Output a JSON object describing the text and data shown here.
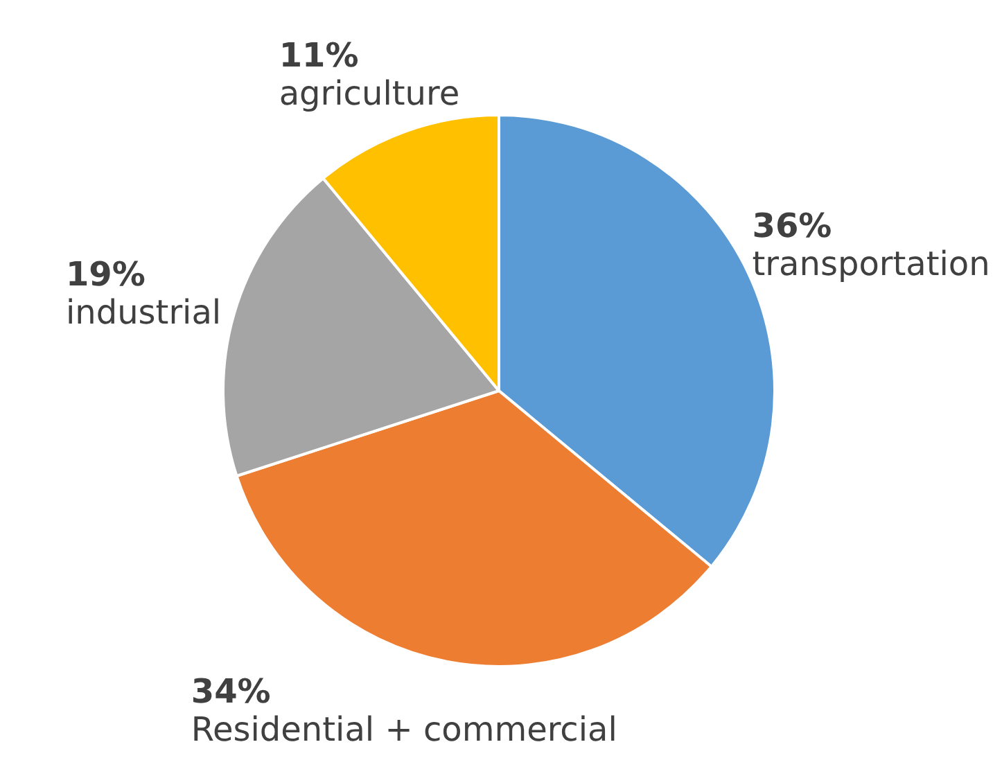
{
  "chart_data": {
    "type": "pie",
    "categories": [
      "transportation",
      "Residential + commercial",
      "industrial",
      "agriculture"
    ],
    "values": [
      36,
      34,
      19,
      11
    ],
    "value_labels": [
      "36%",
      "34%",
      "19%",
      "11%"
    ],
    "colors": [
      "#5b9bd5",
      "#ed7d31",
      "#a5a5a5",
      "#ffc000"
    ],
    "legend": false
  }
}
